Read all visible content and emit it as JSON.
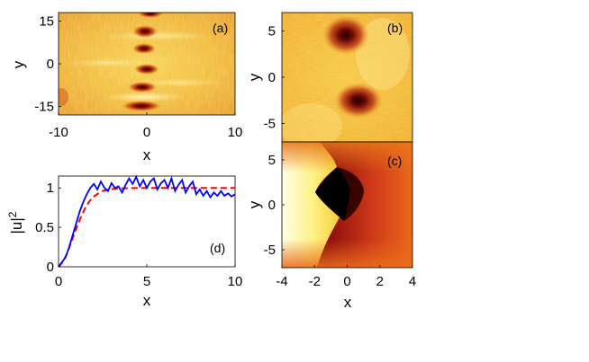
{
  "chart_data": [
    {
      "type": "heatmap",
      "panel_label": "(a)",
      "xlabel": "x",
      "ylabel": "y",
      "xlim": [
        -10,
        10
      ],
      "ylim": [
        -18,
        18
      ],
      "x_ticks": [
        "-10",
        "0",
        "10"
      ],
      "y_ticks": [
        "15",
        "0",
        "-15"
      ],
      "x_tick_values": [
        -10,
        0,
        10
      ],
      "y_tick_values": [
        15,
        0,
        -15
      ],
      "colors": [
        "#fff6b0",
        "#f6c53a",
        "#e8891c",
        "#b41a0a",
        "#3a0000"
      ]
    },
    {
      "type": "heatmap",
      "panel_label": "(b)",
      "xlabel": "",
      "ylabel": "y",
      "xlim": [
        -4,
        4
      ],
      "ylim": [
        -7,
        7
      ],
      "y_ticks": [
        "5",
        "0",
        "-5"
      ],
      "y_tick_values": [
        5,
        0,
        -5
      ],
      "colors": [
        "#fff6b0",
        "#f6c53a",
        "#e8891c",
        "#b41a0a",
        "#3a0000"
      ]
    },
    {
      "type": "heatmap",
      "panel_label": "(c)",
      "xlabel": "x",
      "ylabel": "y",
      "xlim": [
        -4,
        4
      ],
      "ylim": [
        -7,
        7
      ],
      "x_ticks": [
        "-4",
        "-2",
        "0",
        "2",
        "4"
      ],
      "x_tick_values": [
        -4,
        -2,
        0,
        2,
        4
      ],
      "y_ticks": [
        "5",
        "0",
        "-5"
      ],
      "y_tick_values": [
        5,
        0,
        -5
      ],
      "colors": [
        "#ffffff",
        "#fff066",
        "#e6721d",
        "#b21515",
        "#000000"
      ]
    },
    {
      "type": "line",
      "panel_label": "(d)",
      "xlabel": "x",
      "ylabel": "|u|",
      "ylabel_sup": "2",
      "xlim": [
        0,
        10
      ],
      "ylim": [
        0,
        1.15
      ],
      "x_ticks": [
        "0",
        "5",
        "10"
      ],
      "x_tick_values": [
        0,
        5,
        10
      ],
      "y_ticks": [
        "0",
        "0.5",
        "1"
      ],
      "y_tick_values": [
        0,
        0.5,
        1
      ],
      "series": [
        {
          "color": "#0000ff",
          "style": "solid",
          "x": [
            0,
            0.2,
            0.4,
            0.6,
            0.8,
            1.0,
            1.2,
            1.4,
            1.6,
            1.8,
            2.0,
            2.2,
            2.4,
            2.6,
            2.8,
            3.0,
            3.2,
            3.4,
            3.6,
            3.8,
            4.0,
            4.2,
            4.4,
            4.6,
            4.8,
            5.0,
            5.2,
            5.4,
            5.6,
            5.8,
            6.0,
            6.2,
            6.4,
            6.6,
            6.8,
            7.0,
            7.2,
            7.4,
            7.6,
            7.8,
            8.0,
            8.2,
            8.4,
            8.6,
            8.8,
            9.0,
            9.2,
            9.4,
            9.6,
            9.8,
            10.0
          ],
          "y": [
            0.0,
            0.06,
            0.12,
            0.25,
            0.4,
            0.55,
            0.7,
            0.82,
            0.92,
            1.0,
            1.05,
            0.98,
            1.08,
            1.0,
            0.96,
            1.06,
            1.0,
            1.02,
            0.94,
            1.04,
            1.12,
            1.05,
            1.14,
            1.02,
            1.1,
            1.0,
            1.08,
            1.12,
            0.98,
            1.06,
            1.1,
            1.0,
            1.12,
            0.96,
            1.04,
            1.1,
            0.94,
            1.02,
            1.08,
            0.92,
            0.98,
            0.9,
            0.96,
            0.88,
            0.94,
            0.9,
            0.96,
            0.9,
            0.93,
            0.89,
            0.92
          ]
        },
        {
          "color": "#ff0000",
          "style": "dashed",
          "x": [
            0,
            0.25,
            0.5,
            0.75,
            1.0,
            1.25,
            1.5,
            1.75,
            2.0,
            2.25,
            2.5,
            2.75,
            3.0,
            3.5,
            4.0,
            5.0,
            6.0,
            7.0,
            8.0,
            9.0,
            10.0
          ],
          "y": [
            0.0,
            0.06,
            0.18,
            0.33,
            0.48,
            0.62,
            0.74,
            0.83,
            0.89,
            0.93,
            0.96,
            0.975,
            0.985,
            0.993,
            0.997,
            1.0,
            1.0,
            1.0,
            1.0,
            1.0,
            1.0
          ]
        }
      ]
    }
  ]
}
